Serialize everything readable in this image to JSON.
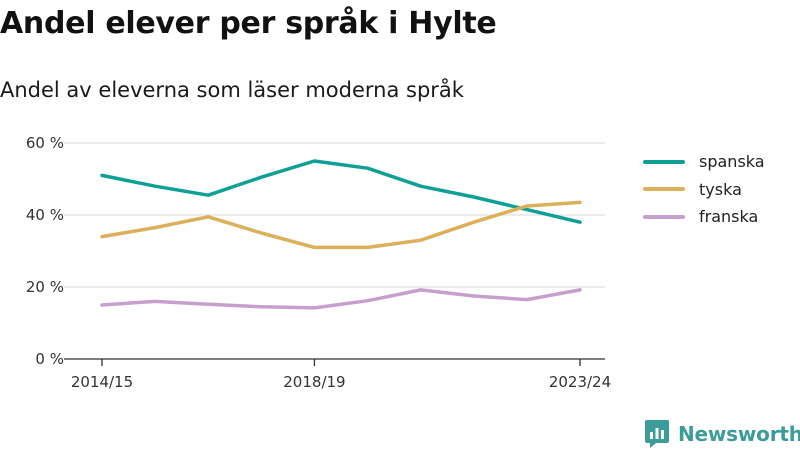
{
  "title": "Andel elever per språk i Hylte",
  "subtitle": "Andel av eleverna som läser moderna språk",
  "brand": {
    "name": "Newsworthy",
    "color": "#3c9c99",
    "icon": "newsworthy-logo-icon"
  },
  "chart_data": {
    "type": "line",
    "x": [
      "2014/15",
      "2015/16",
      "2016/17",
      "2017/18",
      "2018/19",
      "2019/20",
      "2020/21",
      "2021/22",
      "2022/23",
      "2023/24"
    ],
    "x_tick_labels": [
      "2014/15",
      "2018/19",
      "2023/24"
    ],
    "y_ticks": [
      0,
      20,
      40,
      60
    ],
    "y_tick_labels": [
      "0 %",
      "20 %",
      "40 %",
      "60 %"
    ],
    "ylim": [
      0,
      60
    ],
    "grid": true,
    "legend_position": "right",
    "series": [
      {
        "name": "spanska",
        "color": "#0fa095",
        "values": [
          51,
          48,
          45.5,
          50.5,
          55,
          53,
          48,
          45,
          41.5,
          38
        ]
      },
      {
        "name": "tyska",
        "color": "#dcaf5a",
        "values": [
          34,
          36.5,
          39.5,
          35,
          31,
          31,
          33,
          38,
          42.5,
          43.5
        ]
      },
      {
        "name": "franska",
        "color": "#c79fcf",
        "values": [
          15,
          16,
          15.2,
          14.5,
          14.2,
          16.2,
          19.2,
          17.5,
          16.5,
          19.2
        ]
      }
    ]
  }
}
